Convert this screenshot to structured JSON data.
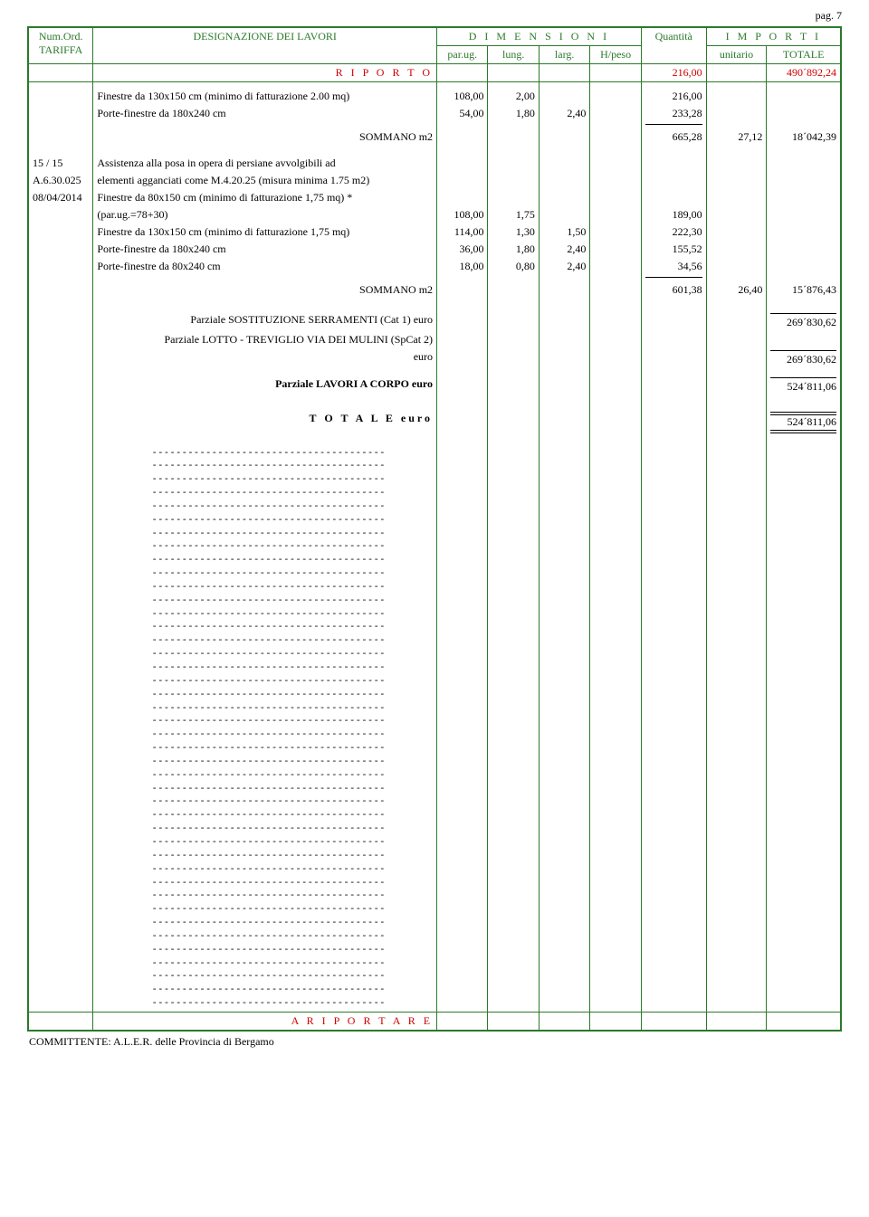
{
  "page_label": "pag. 7",
  "header": {
    "col_num_ord": "Num.Ord.",
    "col_tariffa": "TARIFFA",
    "col_designazione": "DESIGNAZIONE DEI LAVORI",
    "dimensioni": "D I M E N S I O N I",
    "parug": "par.ug.",
    "lung": "lung.",
    "larg": "larg.",
    "hpeso": "H/peso",
    "quantita": "Quantità",
    "importi": "I M P O R T I",
    "unitario": "unitario",
    "totale": "TOTALE"
  },
  "riporto": {
    "label": "R I P O R T O",
    "quantita": "216,00",
    "totale": "490´892,24"
  },
  "block1": {
    "lines": [
      {
        "desc": "Finestre da 130x150 cm (minimo di fatturazione 2.00 mq)",
        "parug": "108,00",
        "lung": "2,00",
        "larg": "",
        "hpeso": "",
        "quant": "216,00"
      },
      {
        "desc": "Porte-finestre da 180x240 cm",
        "parug": "54,00",
        "lung": "1,80",
        "larg": "2,40",
        "hpeso": "",
        "quant": "233,28"
      }
    ],
    "sum_label": "SOMMANO m2",
    "sum_quant": "665,28",
    "sum_unit": "27,12",
    "sum_total": "18´042,39"
  },
  "block2": {
    "ref1": "15 / 15",
    "ref2": "A.6.30.025",
    "ref3": "08/04/2014",
    "intro": [
      "Assistenza alla posa in opera di persiane avvolgibili ad",
      "elementi agganciati come M.4.20.25 (misura minima 1.75 m2)",
      "Finestre da 80x150 cm (minimo di fatturazione 1,75 mq) *"
    ],
    "lines": [
      {
        "desc": "(par.ug.=78+30)",
        "parug": "108,00",
        "lung": "1,75",
        "larg": "",
        "hpeso": "",
        "quant": "189,00"
      },
      {
        "desc": "Finestre da 130x150 cm (minimo di fatturazione 1,75 mq)",
        "parug": "114,00",
        "lung": "1,30",
        "larg": "1,50",
        "hpeso": "",
        "quant": "222,30"
      },
      {
        "desc": "Porte-finestre da 180x240 cm",
        "parug": "36,00",
        "lung": "1,80",
        "larg": "2,40",
        "hpeso": "",
        "quant": "155,52"
      },
      {
        "desc": "Porte-finestre da 80x240 cm",
        "parug": "18,00",
        "lung": "0,80",
        "larg": "2,40",
        "hpeso": "",
        "quant": "34,56"
      }
    ],
    "sum_label": "SOMMANO m2",
    "sum_quant": "601,38",
    "sum_unit": "26,40",
    "sum_total": "15´876,43"
  },
  "partials": {
    "p1_label": "Parziale SOSTITUZIONE SERRAMENTI  (Cat 1) euro",
    "p1_total": "269´830,62",
    "p2_label_a": "Parziale LOTTO - TREVIGLIO VIA DEI MULINI  (SpCat 2)",
    "p2_label_b": "euro",
    "p2_total": "269´830,62",
    "p3_label": "Parziale LAVORI A CORPO euro",
    "p3_total": "524´811,06",
    "tot_label": "T O T A L E   euro",
    "tot_total": "524´811,06"
  },
  "dash": "---------------------------------------",
  "dash_count": 42,
  "ariportare": "A   R I P O R T A R E",
  "committente": "COMMITTENTE: A.L.E.R. delle Provincia di Bergamo",
  "colors": {
    "border": "#2a7a2a",
    "red": "#d00000"
  }
}
